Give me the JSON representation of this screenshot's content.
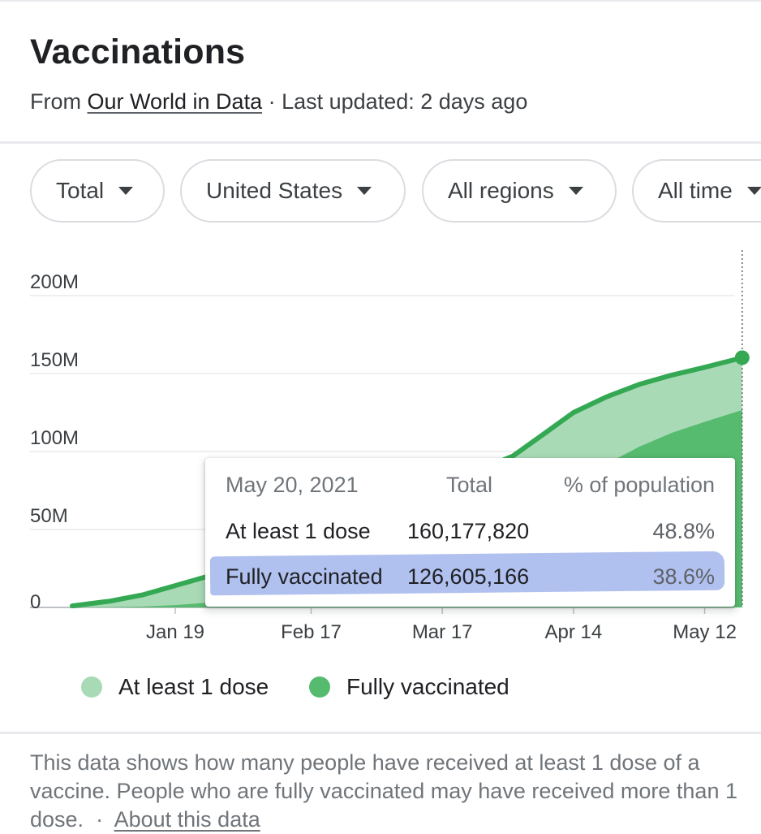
{
  "header": {
    "title": "Vaccinations",
    "from_text": "From",
    "source_link": "Our World in Data",
    "updated_text": "· Last updated: 2 days ago"
  },
  "filters": [
    {
      "label": "Total"
    },
    {
      "label": "United States"
    },
    {
      "label": "All regions"
    },
    {
      "label": "All time"
    }
  ],
  "tooltip": {
    "date": "May 20, 2021",
    "col_total": "Total",
    "col_pct": "% of population",
    "rows": [
      {
        "label": "At least 1 dose",
        "total": "160,177,820",
        "pct": "48.8%"
      },
      {
        "label": "Fully vaccinated",
        "total": "126,605,166",
        "pct": "38.6%"
      }
    ]
  },
  "legend": [
    {
      "label": "At least 1 dose",
      "color": "#a8dab5"
    },
    {
      "label": "Fully vaccinated",
      "color": "#57bb6f"
    }
  ],
  "footer": {
    "text": "This data shows how many people have received at least 1 dose of a vaccine. People who are fully vaccinated may have received more than 1 dose.",
    "sep": "·",
    "link": "About this data"
  },
  "chart_data": {
    "type": "area",
    "ytick_labels": [
      "0",
      "50M",
      "100M",
      "150M",
      "200M"
    ],
    "xtick_labels": [
      "Jan 19",
      "Feb 17",
      "Mar 17",
      "Apr 14",
      "May 12"
    ],
    "ylim": [
      0,
      200000000
    ],
    "grid": true,
    "legend_position": "bottom",
    "x": [
      "2020-12-28",
      "2021-01-05",
      "2021-01-12",
      "2021-01-19",
      "2021-01-26",
      "2021-02-02",
      "2021-04-01",
      "2021-04-08",
      "2021-04-14",
      "2021-04-21",
      "2021-04-28",
      "2021-05-05",
      "2021-05-12",
      "2021-05-20"
    ],
    "series": [
      {
        "name": "At least 1 dose",
        "color": "#a8dab5",
        "values": [
          1000000,
          4000000,
          8000000,
          14000000,
          20000000,
          25000000,
          97000000,
          112000000,
          125000000,
          135000000,
          143000000,
          149000000,
          154000000,
          160177820
        ]
      },
      {
        "name": "Fully vaccinated",
        "color": "#57bb6f",
        "values": [
          0,
          200000,
          500000,
          1500000,
          3000000,
          6000000,
          55000000,
          68000000,
          80000000,
          92000000,
          103000000,
          112000000,
          119000000,
          126605166
        ]
      }
    ]
  }
}
